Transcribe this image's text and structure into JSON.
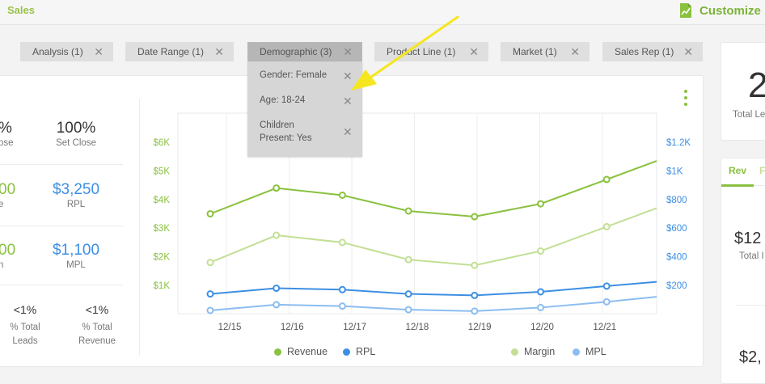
{
  "header": {
    "title": "Sales",
    "customize_label": "Customize"
  },
  "filters": [
    {
      "label": "Analysis (1)",
      "active": false
    },
    {
      "label": "Date Range (1)",
      "active": false
    },
    {
      "label": "Demographic (3)",
      "active": true
    },
    {
      "label": "Product Line (1)",
      "active": false
    },
    {
      "label": "Market (1)",
      "active": false
    },
    {
      "label": "Sales Rep (1)",
      "active": false
    }
  ],
  "demographic_dropdown": [
    {
      "label": "Gender: Female"
    },
    {
      "label": "Age: 18-24"
    },
    {
      "label": "Children Present: Yes"
    }
  ],
  "kpis": {
    "close_pct": "%",
    "close_lbl": "ose",
    "set_close_pct": "100%",
    "set_close_lbl": "Set Close",
    "rev_val": "00",
    "rev_lbl": "e",
    "rpl_val": "$3,250",
    "rpl_lbl": "RPL",
    "m_val": "00",
    "m_lbl": "n",
    "mpl_val": "$1,100",
    "mpl_lbl": "MPL",
    "leads_pct": "<1%",
    "leads_lbl": "% Total Leads",
    "rev_pct": "<1%",
    "rev_pct_lbl": "% Total Revenue"
  },
  "chart_data": {
    "type": "line",
    "categories": [
      "12/15",
      "12/16",
      "12/17",
      "12/18",
      "12/19",
      "12/20",
      "12/21"
    ],
    "y_left_ticks": [
      "$1K",
      "$2K",
      "$3K",
      "$4K",
      "$5K",
      "$6K"
    ],
    "y_right_ticks": [
      "$200",
      "$400",
      "$600",
      "$800",
      "$1K",
      "$1.2K"
    ],
    "ylim_left": [
      0,
      6000
    ],
    "ylim_right": [
      0,
      1200
    ],
    "series": [
      {
        "name": "Revenue",
        "axis": "left",
        "color": "#8ac13f",
        "values": [
          3500,
          4400,
          4150,
          3600,
          3400,
          3850,
          4700
        ],
        "end_value": 5350
      },
      {
        "name": "Margin",
        "axis": "left",
        "color": "#c3df95",
        "values": [
          1800,
          2750,
          2500,
          1900,
          1700,
          2200,
          3050
        ],
        "end_value": 3700
      },
      {
        "name": "RPL",
        "axis": "right",
        "color": "#3d8fe3",
        "values": [
          140,
          180,
          170,
          140,
          130,
          155,
          195
        ],
        "end_value": 225
      },
      {
        "name": "MPL",
        "axis": "right",
        "color": "#8cbdf0",
        "values": [
          25,
          65,
          55,
          30,
          20,
          45,
          85
        ],
        "end_value": 120
      }
    ]
  },
  "right_panel": {
    "count": "2",
    "count_lbl": "Total Le",
    "tab_rev": "Rev",
    "tab_other": "F",
    "money1": "$12",
    "money1_lbl": "Total I",
    "money2": "$2,"
  },
  "colors": {
    "accent_green": "#8ac13f",
    "accent_blue": "#3d8fe3",
    "annotation": "#f5e61e"
  }
}
